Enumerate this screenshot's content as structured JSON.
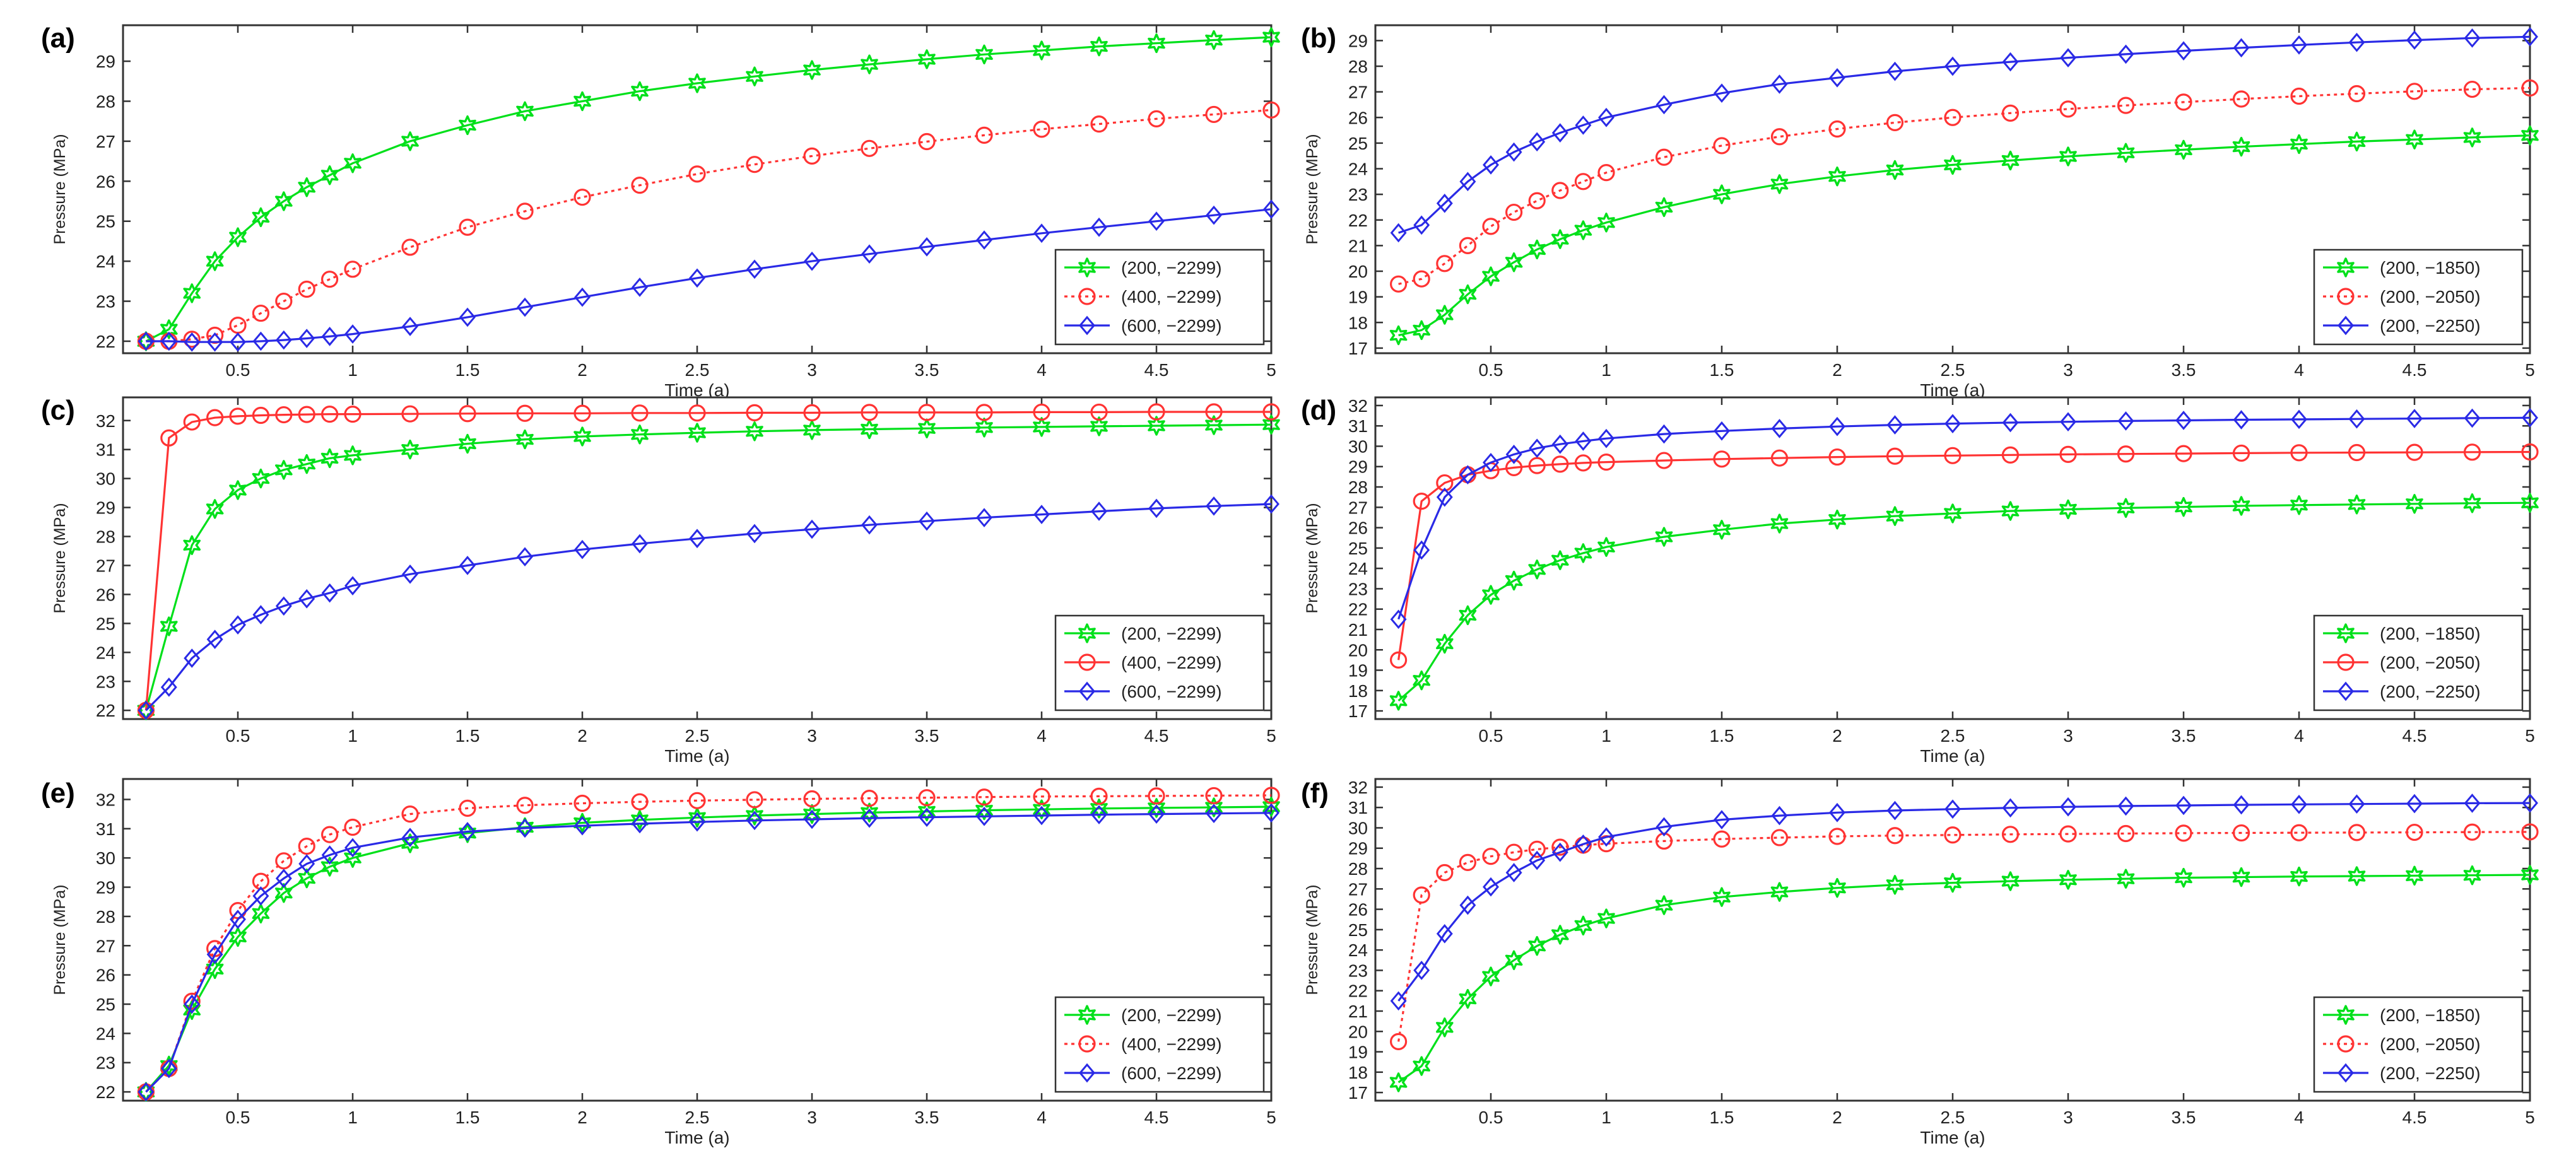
{
  "colors": {
    "green": "#00e01a",
    "red": "#ff3333",
    "blue": "#2a2ae6",
    "axis": "#333333",
    "text": "#222222"
  },
  "chart_data": [
    {
      "type": "line",
      "panel_label": "(a)",
      "xlabel": "Time (a)",
      "ylabel": "Pressure (MPa)",
      "xlim": [
        0,
        5
      ],
      "ylim": [
        21.7,
        29.9
      ],
      "xticks": [
        "0.5",
        "1",
        "1.5",
        "2",
        "2.5",
        "3",
        "3.5",
        "4",
        "4.5",
        "5"
      ],
      "yticks": [
        "22",
        "23",
        "24",
        "25",
        "26",
        "27",
        "28",
        "29"
      ],
      "x": [
        0.1,
        0.2,
        0.3,
        0.4,
        0.5,
        0.6,
        0.7,
        0.8,
        0.9,
        1.0,
        1.25,
        1.5,
        1.75,
        2.0,
        2.25,
        2.5,
        2.75,
        3.0,
        3.25,
        3.5,
        3.75,
        4.0,
        4.25,
        4.5,
        4.75,
        5.0
      ],
      "series": [
        {
          "name": "(200, −2299)",
          "color": "#00e01a",
          "marker": "star",
          "dash": "solid",
          "values": [
            22.0,
            22.3,
            23.2,
            24.0,
            24.6,
            25.1,
            25.5,
            25.85,
            26.15,
            26.45,
            27.0,
            27.4,
            27.75,
            28.0,
            28.25,
            28.45,
            28.62,
            28.78,
            28.92,
            29.05,
            29.17,
            29.27,
            29.37,
            29.45,
            29.53,
            29.6
          ]
        },
        {
          "name": "(400, −2299)",
          "color": "#ff3333",
          "marker": "circle",
          "dash": "dotted",
          "values": [
            22.0,
            22.0,
            22.05,
            22.15,
            22.4,
            22.7,
            23.0,
            23.3,
            23.55,
            23.8,
            24.35,
            24.85,
            25.25,
            25.6,
            25.9,
            26.18,
            26.42,
            26.63,
            26.82,
            26.99,
            27.15,
            27.3,
            27.43,
            27.56,
            27.67,
            27.78
          ]
        },
        {
          "name": "(600, −2299)",
          "color": "#2a2ae6",
          "marker": "diamond",
          "dash": "solid",
          "values": [
            22.0,
            22.0,
            21.98,
            21.98,
            21.98,
            22.0,
            22.03,
            22.07,
            22.12,
            22.18,
            22.37,
            22.6,
            22.85,
            23.1,
            23.35,
            23.58,
            23.8,
            24.0,
            24.18,
            24.36,
            24.53,
            24.7,
            24.85,
            25.0,
            25.15,
            25.3
          ]
        }
      ]
    },
    {
      "type": "line",
      "panel_label": "(b)",
      "xlabel": "Time (a)",
      "ylabel": "Pressure (MPa)",
      "xlim": [
        0,
        5
      ],
      "ylim": [
        16.8,
        29.6
      ],
      "xticks": [
        "0.5",
        "1",
        "1.5",
        "2",
        "2.5",
        "3",
        "3.5",
        "4",
        "4.5",
        "5"
      ],
      "yticks": [
        "17",
        "18",
        "19",
        "20",
        "21",
        "22",
        "23",
        "24",
        "25",
        "26",
        "27",
        "28",
        "29"
      ],
      "x": [
        0.1,
        0.2,
        0.3,
        0.4,
        0.5,
        0.6,
        0.7,
        0.8,
        0.9,
        1.0,
        1.25,
        1.5,
        1.75,
        2.0,
        2.25,
        2.5,
        2.75,
        3.0,
        3.25,
        3.5,
        3.75,
        4.0,
        4.25,
        4.5,
        4.75,
        5.0
      ],
      "series": [
        {
          "name": "(200, −1850)",
          "color": "#00e01a",
          "marker": "star",
          "dash": "solid",
          "values": [
            17.5,
            17.7,
            18.3,
            19.1,
            19.8,
            20.35,
            20.85,
            21.25,
            21.6,
            21.9,
            22.5,
            23.0,
            23.4,
            23.7,
            23.95,
            24.15,
            24.32,
            24.48,
            24.62,
            24.74,
            24.86,
            24.96,
            25.06,
            25.14,
            25.22,
            25.3
          ]
        },
        {
          "name": "(200, −2050)",
          "color": "#ff3333",
          "marker": "circle",
          "dash": "dotted",
          "values": [
            19.5,
            19.7,
            20.3,
            21.0,
            21.75,
            22.3,
            22.75,
            23.15,
            23.5,
            23.85,
            24.45,
            24.9,
            25.25,
            25.55,
            25.8,
            26.0,
            26.17,
            26.33,
            26.47,
            26.6,
            26.72,
            26.83,
            26.93,
            27.02,
            27.1,
            27.15
          ]
        },
        {
          "name": "(200, −2250)",
          "color": "#2a2ae6",
          "marker": "diamond",
          "dash": "solid",
          "values": [
            21.5,
            21.8,
            22.65,
            23.5,
            24.15,
            24.65,
            25.05,
            25.4,
            25.7,
            26.0,
            26.5,
            26.95,
            27.3,
            27.55,
            27.8,
            28.0,
            28.17,
            28.33,
            28.47,
            28.6,
            28.72,
            28.83,
            28.93,
            29.02,
            29.1,
            29.15
          ]
        }
      ]
    },
    {
      "type": "line",
      "panel_label": "(c)",
      "xlabel": "Time (a)",
      "ylabel": "Pressure (MPa)",
      "xlim": [
        0,
        5
      ],
      "ylim": [
        21.7,
        32.8
      ],
      "xticks": [
        "0.5",
        "1",
        "1.5",
        "2",
        "2.5",
        "3",
        "3.5",
        "4",
        "4.5",
        "5"
      ],
      "yticks": [
        "22",
        "23",
        "24",
        "25",
        "26",
        "27",
        "28",
        "29",
        "30",
        "31",
        "32"
      ],
      "x": [
        0.1,
        0.2,
        0.3,
        0.4,
        0.5,
        0.6,
        0.7,
        0.8,
        0.9,
        1.0,
        1.25,
        1.5,
        1.75,
        2.0,
        2.25,
        2.5,
        2.75,
        3.0,
        3.25,
        3.5,
        3.75,
        4.0,
        4.25,
        4.5,
        4.75,
        5.0
      ],
      "series": [
        {
          "name": "(200, −2299)",
          "color": "#00e01a",
          "marker": "star",
          "dash": "solid",
          "values": [
            22.0,
            24.9,
            27.7,
            28.95,
            29.6,
            30.0,
            30.3,
            30.5,
            30.7,
            30.8,
            31.0,
            31.2,
            31.35,
            31.45,
            31.52,
            31.58,
            31.63,
            31.67,
            31.7,
            31.73,
            31.76,
            31.78,
            31.8,
            31.82,
            31.84,
            31.86
          ]
        },
        {
          "name": "(400, −2299)",
          "color": "#ff3333",
          "marker": "circle",
          "dash": "solid",
          "values": [
            22.0,
            31.4,
            31.95,
            32.1,
            32.15,
            32.18,
            32.2,
            32.21,
            32.22,
            32.22,
            32.23,
            32.24,
            32.25,
            32.25,
            32.26,
            32.26,
            32.27,
            32.27,
            32.28,
            32.28,
            32.28,
            32.29,
            32.29,
            32.3,
            32.3,
            32.3
          ]
        },
        {
          "name": "(600, −2299)",
          "color": "#2a2ae6",
          "marker": "diamond",
          "dash": "solid",
          "values": [
            22.0,
            22.8,
            23.8,
            24.45,
            24.95,
            25.3,
            25.6,
            25.85,
            26.05,
            26.3,
            26.7,
            27.0,
            27.3,
            27.55,
            27.75,
            27.93,
            28.1,
            28.25,
            28.4,
            28.53,
            28.65,
            28.76,
            28.87,
            28.97,
            29.05,
            29.12
          ]
        }
      ]
    },
    {
      "type": "line",
      "panel_label": "(d)",
      "xlabel": "Time (a)",
      "ylabel": "Pressure (MPa)",
      "xlim": [
        0,
        5
      ],
      "ylim": [
        16.6,
        32.4
      ],
      "xticks": [
        "0.5",
        "1",
        "1.5",
        "2",
        "2.5",
        "3",
        "3.5",
        "4",
        "4.5",
        "5"
      ],
      "yticks": [
        "17",
        "18",
        "19",
        "20",
        "21",
        "22",
        "23",
        "24",
        "25",
        "26",
        "27",
        "28",
        "29",
        "30",
        "31",
        "32"
      ],
      "x": [
        0.1,
        0.2,
        0.3,
        0.4,
        0.5,
        0.6,
        0.7,
        0.8,
        0.9,
        1.0,
        1.25,
        1.5,
        1.75,
        2.0,
        2.25,
        2.5,
        2.75,
        3.0,
        3.25,
        3.5,
        3.75,
        4.0,
        4.25,
        4.5,
        4.75,
        5.0
      ],
      "series": [
        {
          "name": "(200, −1850)",
          "color": "#00e01a",
          "marker": "star",
          "dash": "solid",
          "values": [
            17.5,
            18.5,
            20.3,
            21.7,
            22.7,
            23.4,
            23.95,
            24.4,
            24.75,
            25.05,
            25.55,
            25.9,
            26.2,
            26.4,
            26.57,
            26.7,
            26.82,
            26.9,
            26.97,
            27.02,
            27.07,
            27.11,
            27.14,
            27.17,
            27.2,
            27.22
          ]
        },
        {
          "name": "(200, −2050)",
          "color": "#ff3333",
          "marker": "circle",
          "dash": "solid",
          "values": [
            19.5,
            27.3,
            28.2,
            28.6,
            28.8,
            28.95,
            29.05,
            29.12,
            29.18,
            29.22,
            29.3,
            29.37,
            29.42,
            29.47,
            29.51,
            29.54,
            29.57,
            29.6,
            29.62,
            29.64,
            29.66,
            29.68,
            29.69,
            29.7,
            29.71,
            29.72
          ]
        },
        {
          "name": "(200, −2250)",
          "color": "#2a2ae6",
          "marker": "diamond",
          "dash": "solid",
          "values": [
            21.5,
            24.9,
            27.5,
            28.6,
            29.2,
            29.6,
            29.9,
            30.1,
            30.25,
            30.38,
            30.6,
            30.75,
            30.87,
            30.97,
            31.05,
            31.11,
            31.16,
            31.2,
            31.24,
            31.27,
            31.3,
            31.32,
            31.34,
            31.36,
            31.38,
            31.4
          ]
        }
      ]
    },
    {
      "type": "line",
      "panel_label": "(e)",
      "xlabel": "Time (a)",
      "ylabel": "Pressure (MPa)",
      "xlim": [
        0,
        5
      ],
      "ylim": [
        21.7,
        32.7
      ],
      "xticks": [
        "0.5",
        "1",
        "1.5",
        "2",
        "2.5",
        "3",
        "3.5",
        "4",
        "4.5",
        "5"
      ],
      "yticks": [
        "22",
        "23",
        "24",
        "25",
        "26",
        "27",
        "28",
        "29",
        "30",
        "31",
        "32"
      ],
      "x": [
        0.1,
        0.2,
        0.3,
        0.4,
        0.5,
        0.6,
        0.7,
        0.8,
        0.9,
        1.0,
        1.25,
        1.5,
        1.75,
        2.0,
        2.25,
        2.5,
        2.75,
        3.0,
        3.25,
        3.5,
        3.75,
        4.0,
        4.25,
        4.5,
        4.75,
        5.0
      ],
      "series": [
        {
          "name": "(200, −2299)",
          "color": "#00e01a",
          "marker": "star",
          "dash": "solid",
          "values": [
            22.0,
            22.9,
            24.8,
            26.2,
            27.3,
            28.1,
            28.8,
            29.3,
            29.7,
            30.0,
            30.5,
            30.85,
            31.05,
            31.2,
            31.3,
            31.38,
            31.45,
            31.5,
            31.55,
            31.59,
            31.63,
            31.66,
            31.69,
            31.71,
            31.73,
            31.75
          ]
        },
        {
          "name": "(400, −2299)",
          "color": "#ff3333",
          "marker": "circle",
          "dash": "dotted",
          "values": [
            22.0,
            22.8,
            25.1,
            26.9,
            28.2,
            29.2,
            29.9,
            30.4,
            30.8,
            31.05,
            31.5,
            31.7,
            31.8,
            31.87,
            31.92,
            31.96,
            31.99,
            32.02,
            32.04,
            32.06,
            32.08,
            32.1,
            32.11,
            32.12,
            32.13,
            32.14
          ]
        },
        {
          "name": "(600, −2299)",
          "color": "#2a2ae6",
          "marker": "diamond",
          "dash": "solid",
          "values": [
            22.0,
            22.8,
            25.0,
            26.7,
            27.9,
            28.7,
            29.3,
            29.8,
            30.1,
            30.35,
            30.7,
            30.9,
            31.02,
            31.1,
            31.17,
            31.23,
            31.28,
            31.32,
            31.36,
            31.39,
            31.42,
            31.45,
            31.48,
            31.5,
            31.52,
            31.54
          ]
        }
      ]
    },
    {
      "type": "line",
      "panel_label": "(f)",
      "xlabel": "Time (a)",
      "ylabel": "Pressure (MPa)",
      "xlim": [
        0,
        5
      ],
      "ylim": [
        16.6,
        32.4
      ],
      "xticks": [
        "0.5",
        "1",
        "1.5",
        "2",
        "2.5",
        "3",
        "3.5",
        "4",
        "4.5",
        "5"
      ],
      "yticks": [
        "17",
        "18",
        "19",
        "20",
        "21",
        "22",
        "23",
        "24",
        "25",
        "26",
        "27",
        "28",
        "29",
        "30",
        "31",
        "32"
      ],
      "x": [
        0.1,
        0.2,
        0.3,
        0.4,
        0.5,
        0.6,
        0.7,
        0.8,
        0.9,
        1.0,
        1.25,
        1.5,
        1.75,
        2.0,
        2.25,
        2.5,
        2.75,
        3.0,
        3.25,
        3.5,
        3.75,
        4.0,
        4.25,
        4.5,
        4.75,
        5.0
      ],
      "series": [
        {
          "name": "(200, −1850)",
          "color": "#00e01a",
          "marker": "star",
          "dash": "solid",
          "values": [
            17.5,
            18.3,
            20.2,
            21.6,
            22.7,
            23.5,
            24.2,
            24.75,
            25.2,
            25.55,
            26.2,
            26.6,
            26.85,
            27.05,
            27.2,
            27.3,
            27.38,
            27.45,
            27.5,
            27.55,
            27.58,
            27.61,
            27.63,
            27.65,
            27.67,
            27.69
          ]
        },
        {
          "name": "(200, −2050)",
          "color": "#ff3333",
          "marker": "circle",
          "dash": "dotted",
          "values": [
            19.5,
            26.7,
            27.8,
            28.3,
            28.6,
            28.8,
            28.95,
            29.05,
            29.15,
            29.22,
            29.35,
            29.45,
            29.52,
            29.58,
            29.62,
            29.65,
            29.68,
            29.7,
            29.72,
            29.74,
            29.75,
            29.76,
            29.77,
            29.78,
            29.79,
            29.8
          ]
        },
        {
          "name": "(200, −2250)",
          "color": "#2a2ae6",
          "marker": "diamond",
          "dash": "solid",
          "values": [
            21.5,
            23.0,
            24.8,
            26.2,
            27.1,
            27.8,
            28.4,
            28.8,
            29.2,
            29.55,
            30.05,
            30.4,
            30.6,
            30.75,
            30.85,
            30.92,
            30.98,
            31.03,
            31.07,
            31.1,
            31.13,
            31.15,
            31.17,
            31.19,
            31.21,
            31.22
          ]
        }
      ]
    }
  ]
}
